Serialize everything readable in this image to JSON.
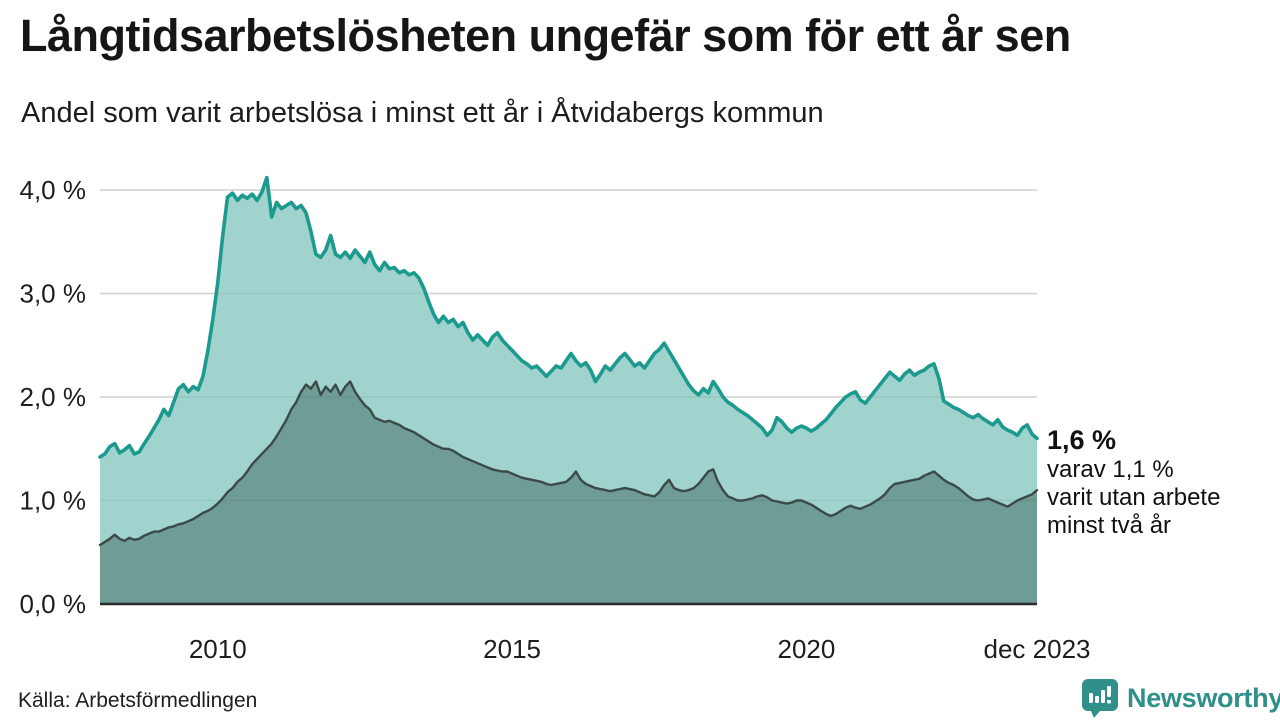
{
  "header": {
    "title": "Långtidsarbetslösheten ungefär som för ett år sen",
    "subtitle": "Andel som varit arbetslösa i minst ett år i Åtvidabergs kommun"
  },
  "annotation": {
    "value": "1,6 %",
    "lines": [
      "varav 1,1 %",
      "varit utan arbete",
      "minst två år"
    ]
  },
  "footer": {
    "source": "Källa: Arbetsförmedlingen",
    "brand": "Newsworthy"
  },
  "colors": {
    "total_line": "#1d9a8e",
    "total_fill": "#a0d3cd",
    "two_year_line": "#3a4a48",
    "two_year_fill": "#709c96",
    "gridline": "#dedede",
    "baseline": "#2b2b2b",
    "axis_text": "#1e1e1e",
    "brand_teal": "#2f8f89"
  },
  "chart_data": {
    "type": "area",
    "title": "Långtidsarbetslösheten ungefär som för ett år sen",
    "subtitle": "Andel som varit arbetslösa i minst ett år i Åtvidabergs kommun",
    "unit": "%",
    "x_start_year": 2008,
    "x_step_months": 1,
    "x_end_label": "dec 2023",
    "ylim": [
      0,
      4.35
    ],
    "grid": true,
    "legend": "none",
    "y_ticks": [
      {
        "label": "0,0 %",
        "value": 0
      },
      {
        "label": "1,0 %",
        "value": 1
      },
      {
        "label": "2,0 %",
        "value": 2
      },
      {
        "label": "3,0 %",
        "value": 3
      },
      {
        "label": "4,0 %",
        "value": 4
      }
    ],
    "x_ticks": [
      {
        "label": "2010",
        "year": 2010
      },
      {
        "label": "2015",
        "year": 2015
      },
      {
        "label": "2020",
        "year": 2020
      },
      {
        "label": "dec 2023",
        "year": 2023.9167
      }
    ],
    "end_values": {
      "total": "1,6 %",
      "two_year": "1,1 %"
    },
    "series": [
      {
        "name": "Arbetslösa minst ett år",
        "values": [
          1.42,
          1.45,
          1.52,
          1.55,
          1.46,
          1.49,
          1.53,
          1.45,
          1.47,
          1.55,
          1.62,
          1.7,
          1.78,
          1.88,
          1.82,
          1.95,
          2.08,
          2.12,
          2.05,
          2.1,
          2.07,
          2.2,
          2.45,
          2.75,
          3.1,
          3.55,
          3.93,
          3.97,
          3.9,
          3.95,
          3.92,
          3.96,
          3.9,
          3.98,
          4.12,
          3.74,
          3.88,
          3.82,
          3.85,
          3.88,
          3.82,
          3.85,
          3.78,
          3.6,
          3.38,
          3.35,
          3.42,
          3.56,
          3.38,
          3.35,
          3.4,
          3.34,
          3.42,
          3.36,
          3.3,
          3.4,
          3.28,
          3.22,
          3.3,
          3.24,
          3.25,
          3.2,
          3.22,
          3.18,
          3.2,
          3.15,
          3.05,
          2.92,
          2.8,
          2.72,
          2.78,
          2.72,
          2.75,
          2.68,
          2.72,
          2.62,
          2.55,
          2.6,
          2.55,
          2.5,
          2.58,
          2.62,
          2.55,
          2.5,
          2.45,
          2.4,
          2.35,
          2.32,
          2.28,
          2.3,
          2.25,
          2.2,
          2.25,
          2.3,
          2.28,
          2.35,
          2.42,
          2.35,
          2.3,
          2.33,
          2.26,
          2.15,
          2.22,
          2.3,
          2.26,
          2.32,
          2.38,
          2.42,
          2.36,
          2.3,
          2.33,
          2.28,
          2.35,
          2.42,
          2.46,
          2.52,
          2.44,
          2.36,
          2.28,
          2.2,
          2.12,
          2.06,
          2.02,
          2.08,
          2.04,
          2.15,
          2.08,
          2.0,
          1.95,
          1.92,
          1.88,
          1.85,
          1.82,
          1.78,
          1.74,
          1.7,
          1.63,
          1.68,
          1.8,
          1.76,
          1.7,
          1.66,
          1.7,
          1.72,
          1.7,
          1.67,
          1.7,
          1.74,
          1.78,
          1.84,
          1.9,
          1.95,
          2.0,
          2.03,
          2.05,
          1.97,
          1.94,
          2.0,
          2.06,
          2.12,
          2.18,
          2.24,
          2.2,
          2.16,
          2.22,
          2.26,
          2.21,
          2.24,
          2.26,
          2.3,
          2.32,
          2.18,
          1.96,
          1.93,
          1.9,
          1.88,
          1.85,
          1.82,
          1.8,
          1.83,
          1.79,
          1.76,
          1.73,
          1.78,
          1.71,
          1.68,
          1.66,
          1.63,
          1.7,
          1.73,
          1.64,
          1.6
        ]
      },
      {
        "name": "Utan arbete minst två år",
        "values": [
          0.57,
          0.6,
          0.63,
          0.67,
          0.63,
          0.61,
          0.64,
          0.62,
          0.63,
          0.66,
          0.68,
          0.7,
          0.7,
          0.72,
          0.74,
          0.75,
          0.77,
          0.78,
          0.8,
          0.82,
          0.85,
          0.88,
          0.9,
          0.93,
          0.97,
          1.02,
          1.08,
          1.12,
          1.18,
          1.22,
          1.28,
          1.35,
          1.4,
          1.45,
          1.5,
          1.55,
          1.62,
          1.7,
          1.78,
          1.88,
          1.95,
          2.05,
          2.12,
          2.08,
          2.15,
          2.02,
          2.1,
          2.05,
          2.12,
          2.02,
          2.1,
          2.15,
          2.05,
          1.98,
          1.92,
          1.88,
          1.8,
          1.78,
          1.76,
          1.77,
          1.75,
          1.73,
          1.7,
          1.68,
          1.66,
          1.63,
          1.6,
          1.57,
          1.54,
          1.52,
          1.5,
          1.5,
          1.48,
          1.45,
          1.42,
          1.4,
          1.38,
          1.36,
          1.34,
          1.32,
          1.3,
          1.29,
          1.28,
          1.28,
          1.26,
          1.24,
          1.22,
          1.21,
          1.2,
          1.19,
          1.18,
          1.16,
          1.15,
          1.16,
          1.17,
          1.18,
          1.22,
          1.28,
          1.2,
          1.16,
          1.14,
          1.12,
          1.11,
          1.1,
          1.09,
          1.1,
          1.11,
          1.12,
          1.11,
          1.1,
          1.08,
          1.06,
          1.05,
          1.04,
          1.08,
          1.15,
          1.2,
          1.12,
          1.1,
          1.09,
          1.1,
          1.12,
          1.16,
          1.22,
          1.28,
          1.3,
          1.18,
          1.1,
          1.04,
          1.02,
          1.0,
          1.0,
          1.01,
          1.02,
          1.04,
          1.05,
          1.03,
          1.0,
          0.99,
          0.98,
          0.97,
          0.98,
          1.0,
          1.0,
          0.98,
          0.96,
          0.93,
          0.9,
          0.87,
          0.85,
          0.87,
          0.9,
          0.93,
          0.95,
          0.93,
          0.92,
          0.94,
          0.96,
          0.99,
          1.02,
          1.06,
          1.12,
          1.16,
          1.17,
          1.18,
          1.19,
          1.2,
          1.21,
          1.24,
          1.26,
          1.28,
          1.24,
          1.2,
          1.17,
          1.15,
          1.12,
          1.08,
          1.04,
          1.01,
          1.0,
          1.01,
          1.02,
          1.0,
          0.98,
          0.96,
          0.94,
          0.97,
          1.0,
          1.02,
          1.04,
          1.06,
          1.1
        ]
      }
    ]
  }
}
